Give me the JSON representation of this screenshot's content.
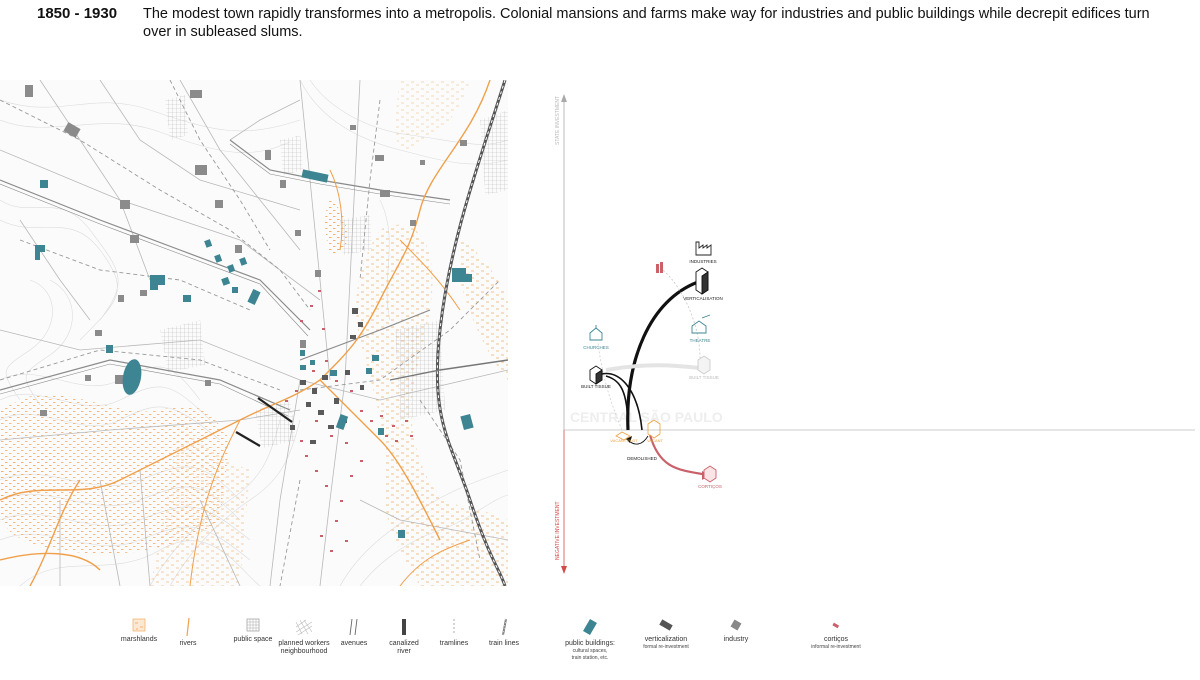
{
  "header": {
    "period": "1850 - 1930",
    "description": "The modest town rapidly transformes into a metropolis. Colonial mansions and farms make way for industries and public buildings while decrepit edifices turn over in subleased slums."
  },
  "colors": {
    "river": "#f0a04b",
    "marsh": "#f2c08a",
    "public_building": "#3d8592",
    "verticalization": "#555555",
    "industry": "#888888",
    "cortico": "#c9606a",
    "vacant": "#e8a33e",
    "axis_negative": "#d24b4b"
  },
  "diagram": {
    "axis_top_label": "STATE INVESTMENT",
    "axis_bottom_label": "NEGATIVE INVESTMENT",
    "center_label": "CENTRAL SÃO PAULO",
    "nodes": {
      "industries": "INDUSTRIES",
      "verticalisation": "VERTICALISATION",
      "churches": "CHURCHES",
      "theatre": "THEATRE",
      "built_tissue_ghost": "BUILT TISSUE",
      "built_tissue": "BUILT TISSUE",
      "vacant_plot": "VACANT PLOT",
      "vacant": "VACANT",
      "demolished": "DEMOLISHED",
      "corticos": "CORTIÇOS"
    }
  },
  "legend": {
    "marshlands": "marshlands",
    "rivers": "rivers",
    "public_space": "public space",
    "planned_workers": "planned workers neighbourhood",
    "avenues": "avenues",
    "canalized_river": "canalized river",
    "tramlines": "tramlines",
    "train_lines": "train lines",
    "public_buildings": "public buildings:",
    "public_buildings_sub1": "cultural spaces,",
    "public_buildings_sub2": "train station, etc.",
    "verticalization": "verticalization",
    "verticalization_sub": "formal re-investment",
    "industry": "industry",
    "corticos": "cortiços",
    "corticos_sub": "informal re-investment"
  }
}
